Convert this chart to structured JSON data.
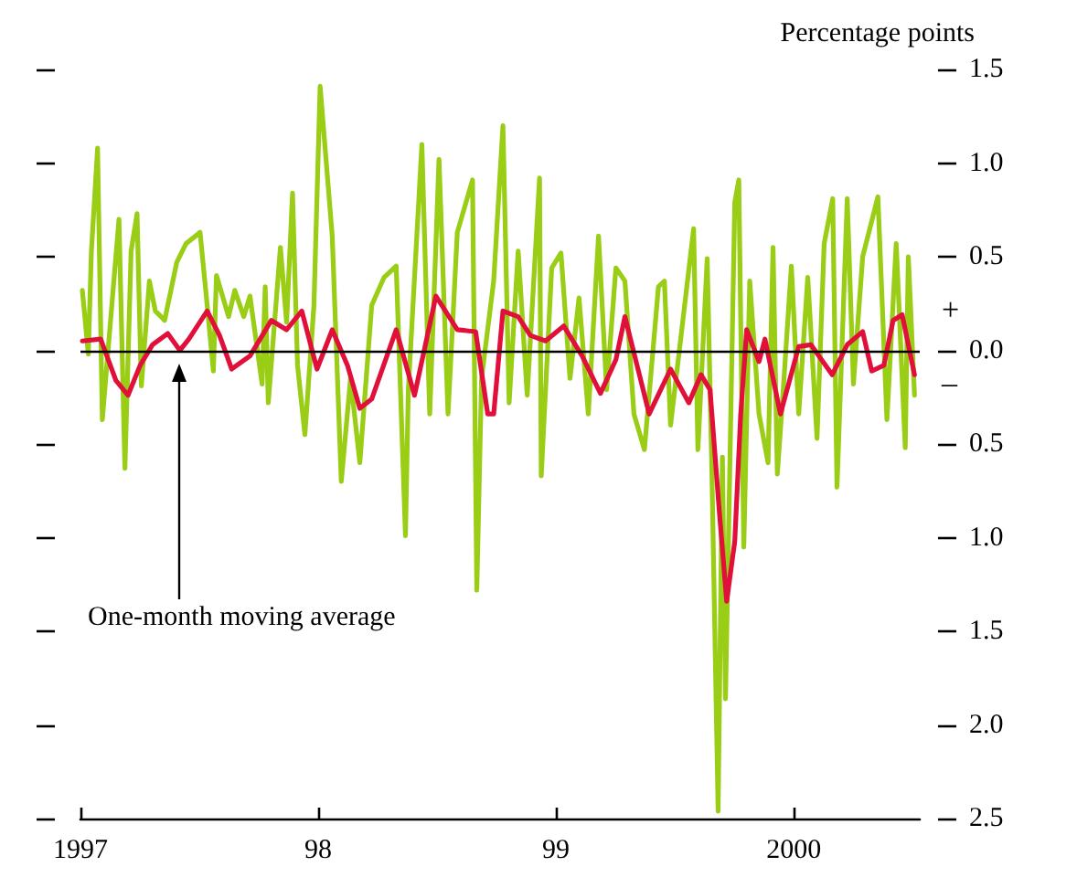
{
  "chart_data": {
    "type": "line",
    "ylabel": "Percentage points",
    "xlim": [
      1997,
      2000.53
    ],
    "xticks": [
      {
        "value": 1997,
        "label": "1997"
      },
      {
        "value": 1998,
        "label": "98"
      },
      {
        "value": 1999,
        "label": "99"
      },
      {
        "value": 2000,
        "label": "2000"
      }
    ],
    "ylim": [
      -2.5,
      1.5
    ],
    "yticks": [
      {
        "value": -2.5,
        "label": "2.5"
      },
      {
        "value": -2,
        "label": "2.0"
      },
      {
        "value": -1.5,
        "label": "1.5"
      },
      {
        "value": -1,
        "label": "1.0"
      },
      {
        "value": -0.5,
        "label": "0.5"
      },
      {
        "value": 0,
        "label": "0.0"
      },
      {
        "value": 0.5,
        "label": "0.5"
      },
      {
        "value": 1,
        "label": "1.0"
      },
      {
        "value": 1.5,
        "label": "1.5"
      }
    ],
    "grid": false,
    "marker": "none",
    "line_style": "solid",
    "ref_lines": [
      {
        "axis": "y",
        "value": 0,
        "color": "#000000"
      }
    ],
    "annotations": [
      "One-month moving average",
      "+",
      "–"
    ],
    "series": [
      {
        "color": "#9acd15",
        "x": [
          1997.008,
          1997.033,
          1997.046,
          1997.072,
          1997.092,
          1997.162,
          1997.187,
          1997.213,
          1997.238,
          1997.256,
          1997.29,
          1997.315,
          1997.354,
          1997.405,
          1997.444,
          1997.503,
          1997.533,
          1997.559,
          1997.572,
          1997.623,
          1997.649,
          1997.687,
          1997.713,
          1997.764,
          1997.777,
          1997.79,
          1997.841,
          1997.867,
          1997.892,
          1997.913,
          1997.944,
          1997.982,
          1998.008,
          1998.059,
          1998.097,
          1998.136,
          1998.175,
          1998.225,
          1998.277,
          1998.328,
          1998.367,
          1998.379,
          1998.436,
          1998.469,
          1998.508,
          1998.546,
          1998.585,
          1998.649,
          1998.667,
          1998.687,
          1998.738,
          1998.777,
          1998.803,
          1998.841,
          1998.879,
          1998.931,
          1998.938,
          1998.982,
          1999.021,
          1999.059,
          1999.097,
          1999.136,
          1999.179,
          1999.213,
          1999.252,
          1999.29,
          1999.328,
          1999.372,
          1999.431,
          1999.456,
          1999.482,
          1999.579,
          1999.597,
          1999.636,
          1999.656,
          1999.682,
          1999.7,
          1999.713,
          1999.752,
          1999.769,
          1999.79,
          1999.815,
          1999.854,
          1999.892,
          1999.913,
          1999.931,
          1999.956,
          1999.99,
          2000.021,
          2000.059,
          2000.098,
          2000.128,
          2000.164,
          2000.182,
          2000.225,
          2000.251,
          2000.29,
          2000.354,
          2000.392,
          2000.431,
          2000.469,
          2000.482,
          2000.508
        ],
        "values": [
          0.32,
          -0.02,
          0.53,
          1.08,
          -0.37,
          0.7,
          -0.63,
          0.53,
          0.73,
          -0.19,
          0.37,
          0.21,
          0.16,
          0.47,
          0.57,
          0.63,
          0.24,
          -0.11,
          0.4,
          0.18,
          0.32,
          0.18,
          0.29,
          -0.18,
          0.34,
          -0.28,
          0.55,
          0.15,
          0.84,
          -0.08,
          -0.45,
          0.24,
          1.41,
          0.61,
          -0.7,
          -0.15,
          -0.6,
          0.24,
          0.39,
          0.45,
          -0.99,
          -0.21,
          1.1,
          -0.34,
          1.02,
          -0.34,
          0.63,
          0.91,
          -1.28,
          -0.15,
          0.37,
          1.2,
          -0.28,
          0.53,
          -0.24,
          0.92,
          -0.67,
          0.44,
          0.52,
          -0.15,
          0.28,
          -0.34,
          0.61,
          -0.21,
          0.44,
          0.37,
          -0.34,
          -0.53,
          0.34,
          0.37,
          -0.4,
          0.65,
          -0.53,
          0.49,
          -0.66,
          -2.46,
          -0.57,
          -1.86,
          0.79,
          0.91,
          -1.05,
          0.37,
          -0.34,
          -0.6,
          0.55,
          -0.66,
          -0.21,
          0.45,
          -0.34,
          0.39,
          -0.47,
          0.57,
          0.81,
          -0.73,
          0.81,
          -0.18,
          0.5,
          0.82,
          -0.37,
          0.57,
          -0.52,
          0.5,
          -0.24
        ]
      },
      {
        "color": "#e0103a",
        "x": [
          1997.008,
          1997.085,
          1997.149,
          1997.2,
          1997.251,
          1997.303,
          1997.367,
          1997.418,
          1997.456,
          1997.533,
          1997.585,
          1997.636,
          1997.713,
          1997.803,
          1997.867,
          1997.931,
          1997.995,
          1998.059,
          1998.123,
          1998.175,
          1998.225,
          1998.328,
          1998.405,
          1998.495,
          1998.585,
          1998.662,
          1998.713,
          1998.738,
          1998.777,
          1998.841,
          1998.892,
          1998.956,
          1999.033,
          1999.11,
          1999.187,
          1999.252,
          1999.29,
          1999.341,
          1999.392,
          1999.482,
          1999.559,
          1999.61,
          1999.648,
          1999.687,
          1999.718,
          1999.752,
          1999.777,
          1999.802,
          1999.854,
          1999.879,
          1999.944,
          2000.021,
          2000.072,
          2000.162,
          2000.225,
          2000.29,
          2000.328,
          2000.379,
          2000.418,
          2000.456,
          2000.508
        ],
        "values": [
          0.05,
          0.06,
          -0.16,
          -0.24,
          -0.08,
          0.03,
          0.09,
          0,
          0.06,
          0.21,
          0.08,
          -0.1,
          -0.03,
          0.16,
          0.11,
          0.21,
          -0.1,
          0.11,
          -0.08,
          -0.31,
          -0.26,
          0.11,
          -0.24,
          0.29,
          0.11,
          0.1,
          -0.34,
          -0.34,
          0.21,
          0.18,
          0.08,
          0.05,
          0.13,
          -0.03,
          -0.23,
          -0.05,
          0.18,
          -0.08,
          -0.34,
          -0.1,
          -0.28,
          -0.13,
          -0.21,
          -0.86,
          -1.34,
          -1.02,
          -0.34,
          0.11,
          -0.06,
          0.06,
          -0.34,
          0.02,
          0.03,
          -0.13,
          0.03,
          0.1,
          -0.11,
          -0.08,
          0.16,
          0.19,
          -0.13
        ]
      }
    ]
  }
}
